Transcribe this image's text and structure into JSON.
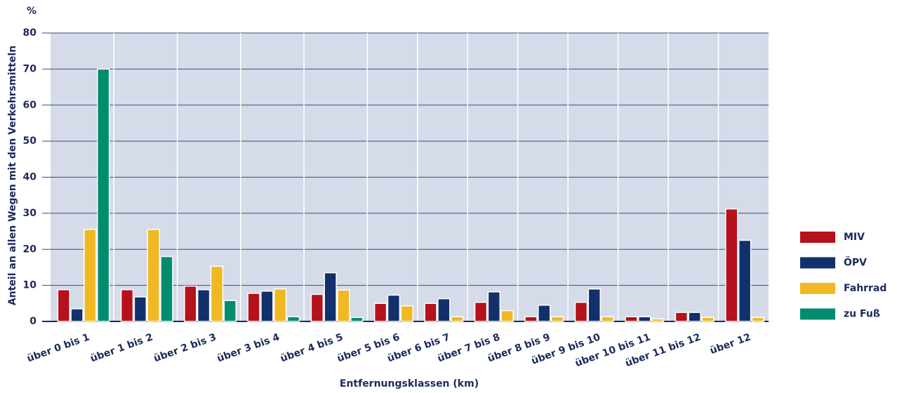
{
  "chart_data": {
    "type": "bar",
    "y_unit": "%",
    "y_label": "Anteil an allen Wegen mit den Verkehrsmitteln",
    "x_label": "Entfernungsklassen (km)",
    "categories": [
      "über 0 bis 1",
      "über 1 bis 2",
      "über 2 bis 3",
      "über 3 bis 4",
      "über 4 bis 5",
      "über 5 bis 6",
      "über 6 bis 7",
      "über 7 bis 8",
      "über 8 bis 9",
      "über 9 bis 10",
      "über 10 bis 11",
      "über 11 bis 12",
      "über 12"
    ],
    "series": [
      {
        "name": "MIV",
        "color": "#b5121b",
        "values": [
          8.8,
          8.8,
          9.8,
          7.8,
          7.5,
          5,
          5,
          5.3,
          1.3,
          5.3,
          1.3,
          2.5,
          31.2
        ]
      },
      {
        "name": "ÖPV",
        "color": "#12306b",
        "values": [
          3.5,
          6.8,
          8.8,
          8.4,
          13.5,
          7.3,
          6.3,
          8.2,
          4.5,
          9,
          1.3,
          2.5,
          22.5
        ]
      },
      {
        "name": "Fahrrad",
        "color": "#f0b823",
        "values": [
          25.5,
          25.5,
          15.3,
          9,
          8.7,
          4.3,
          1.3,
          3,
          1.3,
          1.3,
          0.7,
          1.1,
          1.1
        ]
      },
      {
        "name": "zu Fuß",
        "color": "#008c6e",
        "values": [
          70,
          18,
          5.8,
          1.3,
          1.1,
          null,
          null,
          null,
          null,
          null,
          null,
          null,
          null
        ]
      }
    ],
    "ylim": [
      0,
      80
    ],
    "yticks": [
      0,
      10,
      20,
      30,
      40,
      50,
      60,
      70,
      80
    ],
    "grid": true,
    "legend": "right"
  }
}
